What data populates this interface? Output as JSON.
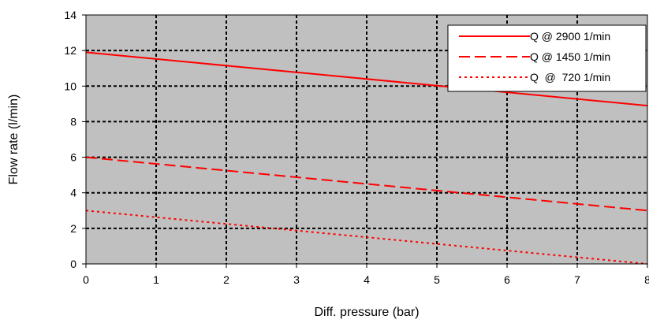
{
  "chart_data": {
    "type": "line",
    "title": "",
    "xlabel": "Diff. pressure (bar)",
    "ylabel": "Flow rate (l/min)",
    "xlim": [
      0,
      8
    ],
    "ylim": [
      0,
      14
    ],
    "x_ticks": [
      "0",
      "1",
      "2",
      "3",
      "4",
      "5",
      "6",
      "7",
      "8"
    ],
    "y_ticks": [
      "0",
      "2",
      "4",
      "6",
      "8",
      "10",
      "12",
      "14"
    ],
    "grid": true,
    "plot_background": "#c0c0c0",
    "legend_position": "top-right",
    "series": [
      {
        "name": "Q @ 2900 1/min",
        "color": "#ff0000",
        "dash": "solid",
        "x": [
          0,
          8
        ],
        "y": [
          11.9,
          8.9
        ]
      },
      {
        "name": "Q @ 1450 1/min",
        "color": "#ff0000",
        "dash": "dashed",
        "x": [
          0,
          8
        ],
        "y": [
          6.0,
          3.0
        ]
      },
      {
        "name": "Q  @  720 1/min",
        "color": "#ff0000",
        "dash": "dotted",
        "x": [
          0,
          8
        ],
        "y": [
          3.0,
          0.0
        ]
      }
    ]
  }
}
